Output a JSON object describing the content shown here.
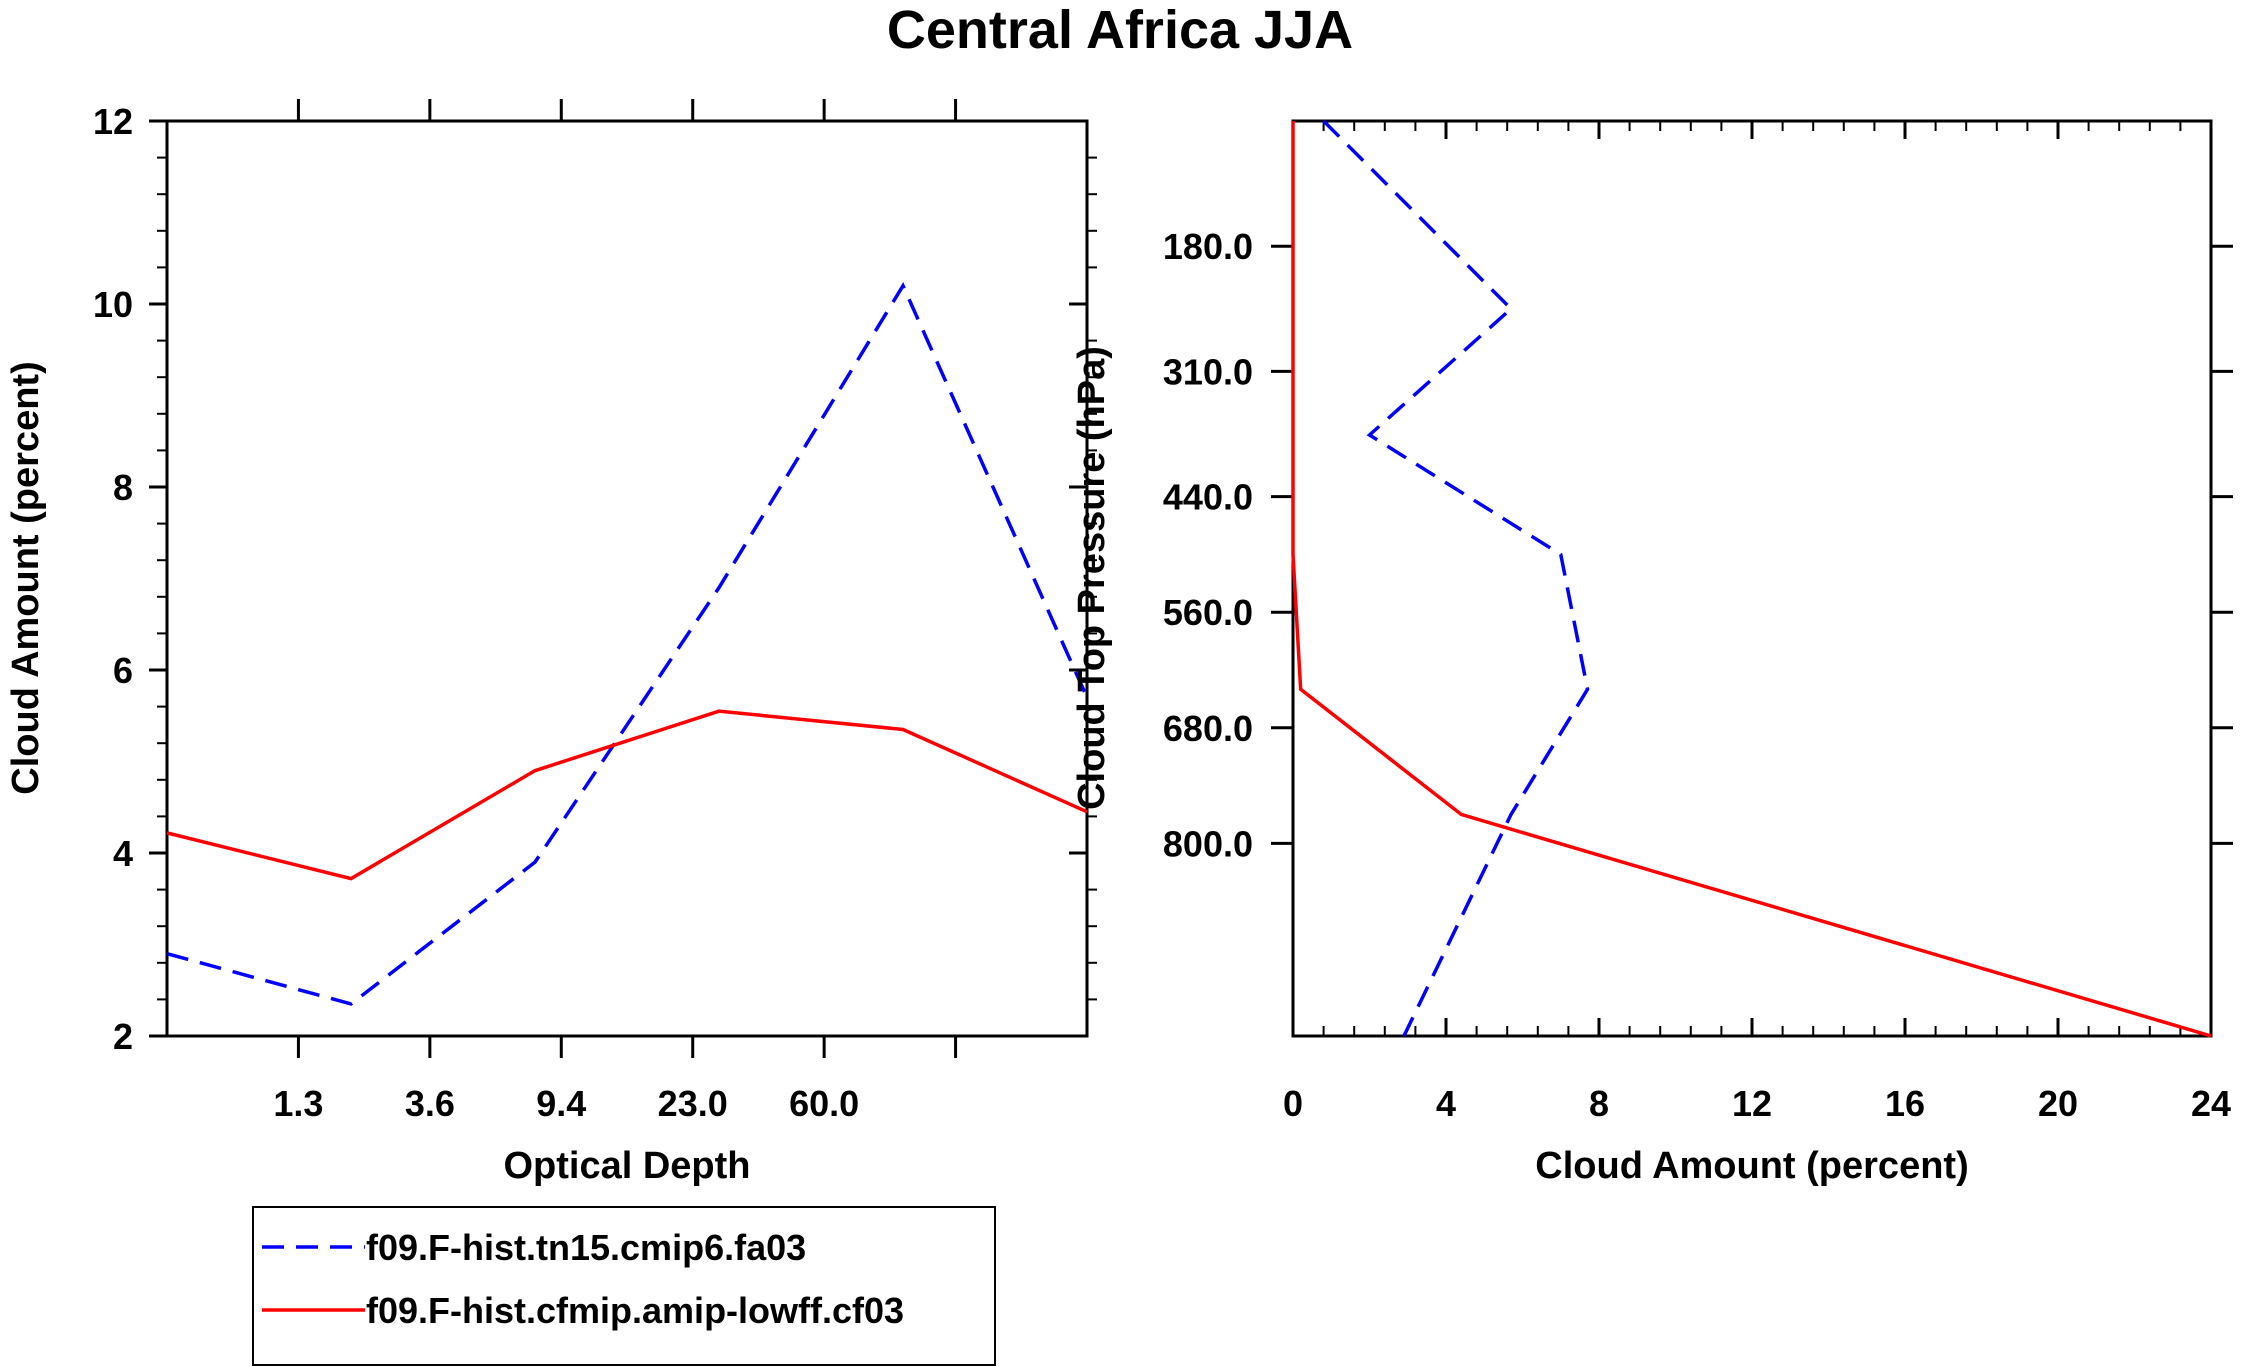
{
  "title": "Central Africa JJA",
  "chart_data": [
    {
      "type": "line",
      "xlabel": "Optical Depth",
      "ylabel": "Cloud Amount (percent)",
      "xlim": [
        0,
        7
      ],
      "ylim": [
        2,
        12
      ],
      "x_ticks": [
        1,
        2,
        3,
        4,
        5,
        6
      ],
      "x_tick_labels": [
        "1.3",
        "3.6",
        "9.4",
        "23.0",
        "60.0"
      ],
      "x_tick_label_positions": [
        1,
        2,
        3,
        4,
        5
      ],
      "y_ticks": [
        2,
        4,
        6,
        8,
        10,
        12
      ],
      "y_tick_labels": [
        "2",
        "4",
        "6",
        "8",
        "10",
        "12"
      ],
      "x": [
        0,
        1.4,
        2.8,
        4.2,
        5.6,
        7
      ],
      "series": [
        {
          "name": "f09.F-hist.tn15.cmip6.fa03",
          "color": "#0000ff",
          "dash": true,
          "values": [
            2.9,
            2.35,
            3.9,
            6.9,
            10.2,
            5.7
          ]
        },
        {
          "name": "f09.F-hist.cfmip.amip-lowff.cf03",
          "color": "#ff0000",
          "dash": false,
          "values": [
            4.22,
            3.72,
            4.9,
            5.55,
            5.35,
            4.45
          ]
        }
      ]
    },
    {
      "type": "line",
      "orientation": "vertical",
      "xlabel": "Cloud Amount (percent)",
      "ylabel": "Cloud Top Pressure (hPa)",
      "xlim": [
        0,
        24
      ],
      "ylim": [
        1000,
        50
      ],
      "x_ticks": [
        0,
        4,
        8,
        12,
        16,
        20,
        24
      ],
      "x_tick_labels": [
        "0",
        "4",
        "8",
        "12",
        "16",
        "20",
        "24"
      ],
      "y_ticks": [
        180,
        310,
        440,
        560,
        680,
        800
      ],
      "y_tick_labels": [
        "180.0",
        "310.0",
        "440.0",
        "560.0",
        "680.0",
        "800.0"
      ],
      "y_axis": [
        50,
        245,
        376,
        500,
        640,
        770,
        1000
      ],
      "series": [
        {
          "name": "f09.F-hist.tn15.cmip6.fa03",
          "color": "#0000ff",
          "dash": true,
          "values": [
            0.8,
            5.7,
            2.0,
            7.0,
            7.7,
            5.7,
            2.9
          ]
        },
        {
          "name": "f09.F-hist.cfmip.amip-lowff.cf03",
          "color": "#ff0000",
          "dash": false,
          "values": [
            0.0,
            0.0,
            0.0,
            0.0,
            0.2,
            4.4,
            24.0
          ]
        }
      ]
    }
  ],
  "legend": [
    {
      "label": "f09.F-hist.tn15.cmip6.fa03",
      "color": "#0000ff",
      "dash": true
    },
    {
      "label": "f09.F-hist.cfmip.amip-lowff.cf03",
      "color": "#ff0000",
      "dash": false
    }
  ]
}
